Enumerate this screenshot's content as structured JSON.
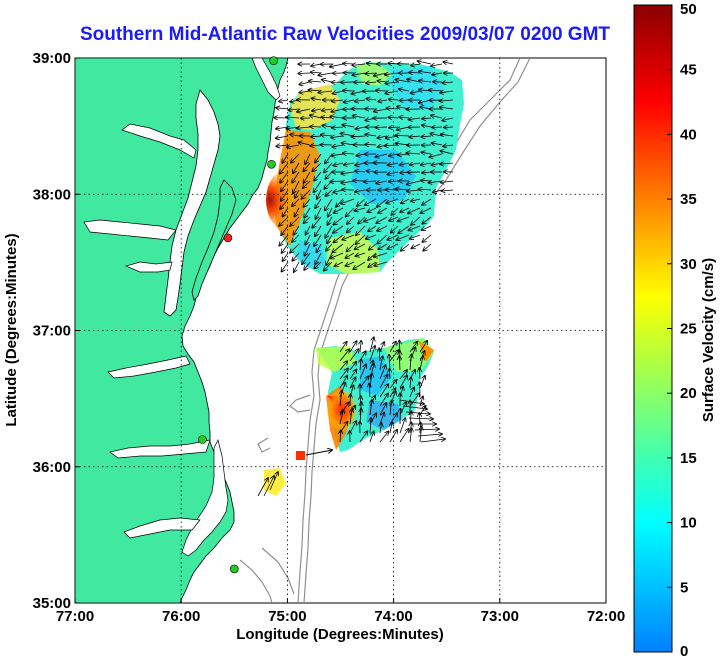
{
  "title": "Southern Mid-Atlantic Raw Velocities 2009/03/07 0200 GMT",
  "axes": {
    "xlabel": "Longitude (Degrees:Minutes)",
    "ylabel": "Latitude (Degrees:Minutes)",
    "x_ticks": [
      {
        "lon": -77,
        "label": "77:00"
      },
      {
        "lon": -76,
        "label": "76:00"
      },
      {
        "lon": -75,
        "label": "75:00"
      },
      {
        "lon": -74,
        "label": "74:00"
      },
      {
        "lon": -73,
        "label": "73:00"
      },
      {
        "lon": -72,
        "label": "72:00"
      }
    ],
    "y_ticks": [
      {
        "lat": 35,
        "label": "35:00"
      },
      {
        "lat": 36,
        "label": "36:00"
      },
      {
        "lat": 37,
        "label": "37:00"
      },
      {
        "lat": 38,
        "label": "38:00"
      },
      {
        "lat": 39,
        "label": "39:00"
      }
    ],
    "xlim": [
      -77,
      -72
    ],
    "ylim": [
      35,
      39
    ],
    "grid": true
  },
  "colorbar": {
    "label": "Surface Velocity (cm/s)",
    "min": 0,
    "max": 50,
    "ticks": [
      {
        "value": 0,
        "label": "0"
      },
      {
        "value": 5,
        "label": "5"
      },
      {
        "value": 10,
        "label": "10"
      },
      {
        "value": 15,
        "label": "15"
      },
      {
        "value": 20,
        "label": "20"
      },
      {
        "value": 25,
        "label": "25"
      },
      {
        "value": 30,
        "label": "30"
      },
      {
        "value": 35,
        "label": "35"
      },
      {
        "value": 40,
        "label": "40"
      },
      {
        "value": 45,
        "label": "45"
      },
      {
        "value": 50,
        "label": "50"
      }
    ]
  },
  "colors": {
    "land": "#40e8a0",
    "ocean": "#ffffff",
    "coastline": "#000000",
    "bathymetry": "#909090",
    "grid": "#000000",
    "title": "#1a1aff",
    "station_green": "#22cc22",
    "station_red": "#ee2222"
  },
  "chart_data": {
    "type": "heatmap",
    "regions": [
      {
        "name": "north-patch",
        "lon_range": [
          -75.15,
          -73.6
        ],
        "lat_range": [
          37.4,
          39.0
        ],
        "peak_velocity_cm_s": 45
      },
      {
        "name": "south-patch",
        "lon_range": [
          -74.55,
          -73.6
        ],
        "lat_range": [
          36.1,
          36.85
        ],
        "peak_velocity_cm_s": 45
      }
    ],
    "stations": [
      {
        "lon": -75.13,
        "lat": 38.98,
        "color": "green"
      },
      {
        "lon": -75.15,
        "lat": 38.22,
        "color": "green"
      },
      {
        "lon": -75.56,
        "lat": 37.68,
        "color": "red"
      },
      {
        "lon": -75.8,
        "lat": 36.2,
        "color": "green"
      },
      {
        "lon": -75.5,
        "lat": 35.25,
        "color": "green"
      }
    ]
  }
}
